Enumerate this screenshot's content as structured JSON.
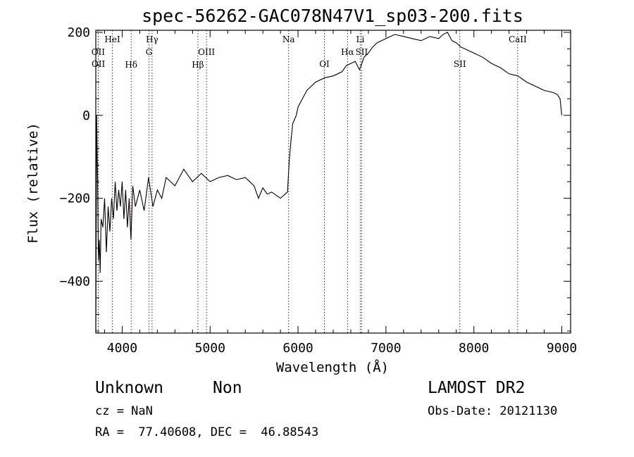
{
  "chart_data": {
    "type": "line",
    "title": "spec-56262-GAC078N47V1_sp03-200.fits",
    "xlabel": "Wavelength (Å)",
    "ylabel": "Flux (relative)",
    "xlim": [
      3700,
      9100
    ],
    "ylim": [
      -525,
      205
    ],
    "x_ticks": [
      4000,
      5000,
      6000,
      7000,
      8000,
      9000
    ],
    "y_ticks": [
      -400,
      -200,
      0,
      200
    ],
    "line_color": "#a00000",
    "lines": [
      {
        "label": "OII",
        "x": 3727,
        "row": 2
      },
      {
        "label": "OII",
        "x": 3729,
        "row": 3
      },
      {
        "label": "HeI",
        "x": 3889,
        "row": 1
      },
      {
        "label": "Hδ",
        "x": 4102,
        "row": 4
      },
      {
        "label": "Hγ",
        "x": 4340,
        "row": 1
      },
      {
        "label": "G",
        "x": 4305,
        "row": 2
      },
      {
        "label": "Hβ",
        "x": 4861,
        "row": 4
      },
      {
        "label": "OIII",
        "x": 4959,
        "row": 2
      },
      {
        "label": "Na",
        "x": 5893,
        "row": 1
      },
      {
        "label": "OI",
        "x": 6300,
        "row": 3
      },
      {
        "label": "Hα",
        "x": 6563,
        "row": 2
      },
      {
        "label": "Li",
        "x": 6708,
        "row": 1
      },
      {
        "label": "SII",
        "x": 6724,
        "row": 2
      },
      {
        "label": "SII",
        "x": 7840,
        "row": 3
      },
      {
        "label": "CaII",
        "x": 8498,
        "row": 1
      }
    ],
    "series": [
      {
        "name": "spectrum",
        "x": [
          3700,
          3710,
          3720,
          3730,
          3740,
          3750,
          3760,
          3780,
          3800,
          3820,
          3840,
          3860,
          3880,
          3900,
          3920,
          3940,
          3960,
          3980,
          4000,
          4020,
          4040,
          4060,
          4080,
          4100,
          4120,
          4150,
          4200,
          4250,
          4300,
          4350,
          4400,
          4450,
          4500,
          4600,
          4700,
          4800,
          4900,
          5000,
          5100,
          5200,
          5300,
          5400,
          5500,
          5550,
          5600,
          5650,
          5700,
          5800,
          5880,
          5900,
          5920,
          5940,
          5960,
          5980,
          6000,
          6050,
          6100,
          6200,
          6300,
          6400,
          6500,
          6550,
          6600,
          6650,
          6700,
          6750,
          6800,
          6850,
          6900,
          7000,
          7100,
          7200,
          7300,
          7400,
          7500,
          7600,
          7650,
          7700,
          7750,
          7800,
          7850,
          7900,
          8000,
          8100,
          8200,
          8300,
          8400,
          8500,
          8600,
          8700,
          8800,
          8900,
          8950,
          8980,
          9000
        ],
        "y": [
          -520,
          0,
          -150,
          -350,
          -300,
          -380,
          -250,
          -270,
          -200,
          -330,
          -220,
          -280,
          -200,
          -250,
          -160,
          -230,
          -180,
          -220,
          -160,
          -250,
          -180,
          -270,
          -200,
          -300,
          -170,
          -220,
          -180,
          -230,
          -150,
          -220,
          -180,
          -200,
          -150,
          -170,
          -130,
          -160,
          -140,
          -160,
          -150,
          -145,
          -155,
          -150,
          -170,
          -200,
          -175,
          -190,
          -185,
          -200,
          -185,
          -110,
          -60,
          -20,
          -10,
          0,
          20,
          40,
          60,
          80,
          90,
          95,
          105,
          120,
          125,
          130,
          110,
          140,
          150,
          165,
          175,
          185,
          195,
          190,
          185,
          180,
          190,
          185,
          195,
          200,
          180,
          175,
          165,
          160,
          150,
          140,
          125,
          115,
          100,
          95,
          80,
          70,
          60,
          55,
          50,
          40,
          0
        ]
      }
    ]
  },
  "info": {
    "class": "Unknown",
    "subclass": "Non",
    "cz": "cz = NaN",
    "coords": "RA =  77.40608, DEC =  46.88543",
    "survey": "LAMOST DR2",
    "obs_date": "Obs-Date: 20121130"
  }
}
